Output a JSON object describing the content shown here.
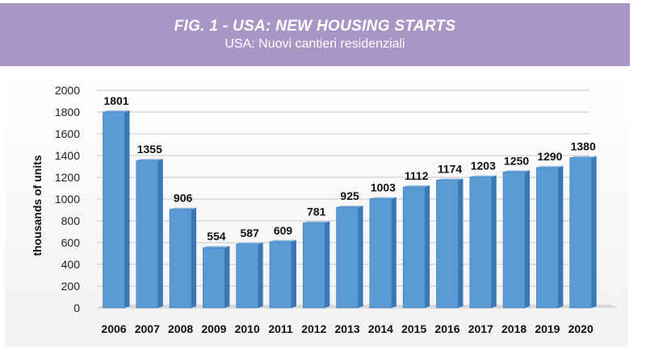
{
  "header": {
    "title": "FIG. 1 - USA: NEW HOUSING STARTS",
    "subtitle": "USA: Nuovi cantieri residenziali"
  },
  "colors": {
    "header_bg": "#a996c4",
    "bar_front": "#5b9bd5",
    "bar_side": "#3a78b8",
    "bar_top": "#8fbde8"
  },
  "chart_data": {
    "type": "bar",
    "title": "FIG. 1 - USA: NEW HOUSING STARTS",
    "subtitle": "USA: Nuovi cantieri residenziali",
    "xlabel": "",
    "ylabel": "thousands of units",
    "ylim": [
      0,
      2000
    ],
    "yticks": [
      0,
      200,
      400,
      600,
      800,
      1000,
      1200,
      1400,
      1600,
      1800,
      2000
    ],
    "grid": true,
    "categories": [
      "2006",
      "2007",
      "2008",
      "2009",
      "2010",
      "2011",
      "2012",
      "2013",
      "2014",
      "2015",
      "2016",
      "2017",
      "2018",
      "2019",
      "2020"
    ],
    "values": [
      1801,
      1355,
      906,
      554,
      587,
      609,
      781,
      925,
      1003,
      1112,
      1174,
      1203,
      1250,
      1290,
      1380
    ]
  }
}
